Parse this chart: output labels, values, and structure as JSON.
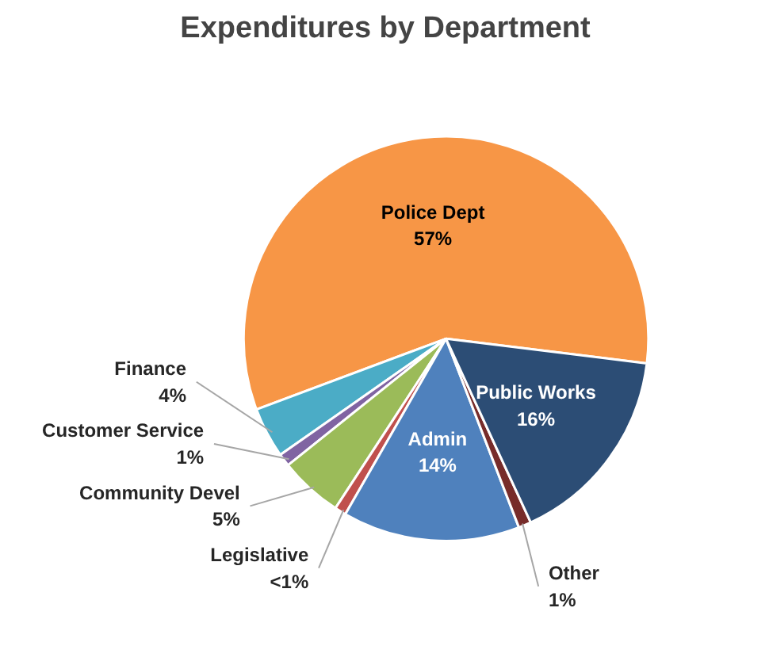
{
  "chart_data": {
    "type": "pie",
    "title": "Expenditures by Department",
    "categories": [
      "Police Dept",
      "Finance",
      "Customer Service",
      "Community Devel",
      "Legislative",
      "Admin",
      "Other",
      "Public Works"
    ],
    "values": [
      57,
      4,
      1,
      5,
      0.9,
      14,
      1,
      16
    ],
    "value_labels": [
      "57%",
      "4%",
      "1%",
      "5%",
      "<1%",
      "14%",
      "1%",
      "16%"
    ],
    "colors": [
      "#f79646",
      "#4bacc6",
      "#8064a2",
      "#9bbb59",
      "#c0504d",
      "#4f81bd",
      "#772c2a",
      "#2c4d75"
    ],
    "legend": false
  }
}
